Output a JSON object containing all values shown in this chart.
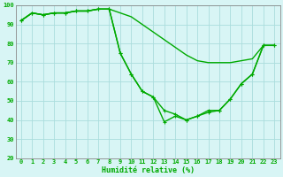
{
  "xlabel": "Humidité relative (%)",
  "bg_color": "#d8f5f5",
  "grid_color": "#aadddd",
  "line_color": "#00aa00",
  "ylim": [
    20,
    100
  ],
  "xlim": [
    -0.5,
    23.5
  ],
  "yticks": [
    20,
    30,
    40,
    50,
    60,
    70,
    80,
    90,
    100
  ],
  "xticks": [
    0,
    1,
    2,
    3,
    4,
    5,
    6,
    7,
    8,
    9,
    10,
    11,
    12,
    13,
    14,
    15,
    16,
    17,
    18,
    19,
    20,
    21,
    22,
    23
  ],
  "series": [
    {
      "y": [
        92,
        96,
        95,
        96,
        96,
        97,
        97,
        98,
        98,
        96,
        94,
        90,
        86,
        82,
        78,
        74,
        71,
        70,
        70,
        70,
        71,
        72,
        79,
        79
      ],
      "marker": false,
      "linewidth": 1.0
    },
    {
      "y": [
        92,
        96,
        95,
        96,
        96,
        97,
        97,
        98,
        98,
        75,
        64,
        55,
        52,
        45,
        43,
        40,
        42,
        45,
        45,
        51,
        59,
        64,
        79,
        79
      ],
      "marker": true,
      "linewidth": 1.0
    },
    {
      "y": [
        92,
        96,
        95,
        96,
        96,
        97,
        97,
        98,
        98,
        75,
        64,
        55,
        52,
        39,
        42,
        40,
        42,
        44,
        45,
        51,
        59,
        64,
        79,
        79
      ],
      "marker": true,
      "linewidth": 1.0
    }
  ]
}
